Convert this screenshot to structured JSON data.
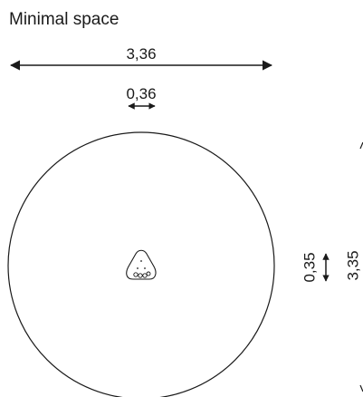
{
  "title": "Minimal space",
  "dimensions": {
    "overall_width": "3,36",
    "element_width": "0,36",
    "element_depth": "0,35",
    "overall_depth": "3,35"
  },
  "icons": {
    "overall_width_arrow": "double-arrow-horizontal",
    "element_width_arrow": "double-arrow-horizontal-small",
    "element_depth_arrow": "double-arrow-vertical-small",
    "space_outline": "circle-outline",
    "equipment_symbol": "rounded-triangle-with-dots"
  },
  "colors": {
    "line": "#1a1a1a",
    "background": "#ffffff"
  }
}
